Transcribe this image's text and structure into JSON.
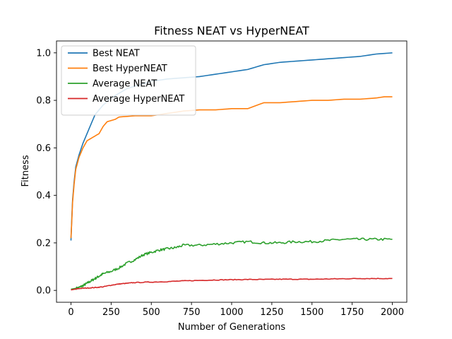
{
  "chart_data": {
    "type": "line",
    "title": "Fitness NEAT vs HyperNEAT",
    "xlabel": "Number of Generations",
    "ylabel": "Fitness",
    "xlim": [
      -90,
      2090
    ],
    "ylim": [
      -0.05,
      1.05
    ],
    "xticks": [
      0,
      250,
      500,
      750,
      1000,
      1250,
      1500,
      1750,
      2000
    ],
    "yticks": [
      0.0,
      0.2,
      0.4,
      0.6,
      0.8,
      1.0
    ],
    "grid": false,
    "legend_position": "top-left",
    "series": [
      {
        "name": "Best NEAT",
        "color": "#1f77b4",
        "points": [
          [
            0,
            0.21
          ],
          [
            5,
            0.3
          ],
          [
            10,
            0.38
          ],
          [
            20,
            0.46
          ],
          [
            30,
            0.52
          ],
          [
            50,
            0.57
          ],
          [
            75,
            0.62
          ],
          [
            100,
            0.66
          ],
          [
            125,
            0.7
          ],
          [
            150,
            0.74
          ],
          [
            175,
            0.76
          ],
          [
            200,
            0.78
          ],
          [
            250,
            0.81
          ],
          [
            300,
            0.83
          ],
          [
            350,
            0.85
          ],
          [
            400,
            0.86
          ],
          [
            450,
            0.87
          ],
          [
            500,
            0.88
          ],
          [
            600,
            0.89
          ],
          [
            700,
            0.895
          ],
          [
            800,
            0.9
          ],
          [
            900,
            0.91
          ],
          [
            1000,
            0.92
          ],
          [
            1100,
            0.93
          ],
          [
            1150,
            0.94
          ],
          [
            1200,
            0.95
          ],
          [
            1300,
            0.96
          ],
          [
            1400,
            0.965
          ],
          [
            1500,
            0.97
          ],
          [
            1600,
            0.975
          ],
          [
            1700,
            0.98
          ],
          [
            1800,
            0.985
          ],
          [
            1900,
            0.995
          ],
          [
            2000,
            1.0
          ]
        ]
      },
      {
        "name": "Best HyperNEAT",
        "color": "#ff7f0e",
        "points": [
          [
            0,
            0.22
          ],
          [
            5,
            0.29
          ],
          [
            10,
            0.37
          ],
          [
            20,
            0.45
          ],
          [
            30,
            0.51
          ],
          [
            50,
            0.56
          ],
          [
            75,
            0.6
          ],
          [
            100,
            0.63
          ],
          [
            125,
            0.64
          ],
          [
            150,
            0.65
          ],
          [
            175,
            0.66
          ],
          [
            200,
            0.69
          ],
          [
            225,
            0.71
          ],
          [
            250,
            0.715
          ],
          [
            275,
            0.72
          ],
          [
            300,
            0.73
          ],
          [
            400,
            0.735
          ],
          [
            500,
            0.735
          ],
          [
            600,
            0.745
          ],
          [
            700,
            0.755
          ],
          [
            800,
            0.76
          ],
          [
            900,
            0.76
          ],
          [
            1000,
            0.765
          ],
          [
            1100,
            0.765
          ],
          [
            1200,
            0.79
          ],
          [
            1300,
            0.79
          ],
          [
            1400,
            0.795
          ],
          [
            1500,
            0.8
          ],
          [
            1600,
            0.8
          ],
          [
            1700,
            0.805
          ],
          [
            1800,
            0.805
          ],
          [
            1900,
            0.81
          ],
          [
            1950,
            0.815
          ],
          [
            2000,
            0.815
          ]
        ]
      },
      {
        "name": "Average NEAT",
        "color": "#2ca02c",
        "points": [
          [
            0,
            0.005
          ],
          [
            25,
            0.008
          ],
          [
            50,
            0.012
          ],
          [
            75,
            0.02
          ],
          [
            100,
            0.03
          ],
          [
            125,
            0.04
          ],
          [
            150,
            0.05
          ],
          [
            175,
            0.06
          ],
          [
            200,
            0.07
          ],
          [
            250,
            0.08
          ],
          [
            300,
            0.095
          ],
          [
            350,
            0.115
          ],
          [
            400,
            0.13
          ],
          [
            450,
            0.15
          ],
          [
            500,
            0.16
          ],
          [
            550,
            0.17
          ],
          [
            600,
            0.175
          ],
          [
            650,
            0.18
          ],
          [
            700,
            0.19
          ],
          [
            800,
            0.19
          ],
          [
            900,
            0.195
          ],
          [
            1000,
            0.2
          ],
          [
            1100,
            0.205
          ],
          [
            1200,
            0.2
          ],
          [
            1300,
            0.2
          ],
          [
            1400,
            0.205
          ],
          [
            1500,
            0.205
          ],
          [
            1600,
            0.21
          ],
          [
            1700,
            0.215
          ],
          [
            1800,
            0.215
          ],
          [
            1900,
            0.215
          ],
          [
            2000,
            0.215
          ]
        ]
      },
      {
        "name": "Average HyperNEAT",
        "color": "#d62728",
        "points": [
          [
            0,
            0.002
          ],
          [
            25,
            0.005
          ],
          [
            50,
            0.008
          ],
          [
            100,
            0.01
          ],
          [
            150,
            0.012
          ],
          [
            200,
            0.015
          ],
          [
            250,
            0.022
          ],
          [
            300,
            0.027
          ],
          [
            350,
            0.03
          ],
          [
            400,
            0.033
          ],
          [
            500,
            0.035
          ],
          [
            600,
            0.037
          ],
          [
            700,
            0.04
          ],
          [
            800,
            0.042
          ],
          [
            900,
            0.044
          ],
          [
            1000,
            0.045
          ],
          [
            1100,
            0.046
          ],
          [
            1200,
            0.046
          ],
          [
            1300,
            0.047
          ],
          [
            1400,
            0.047
          ],
          [
            1500,
            0.047
          ],
          [
            1600,
            0.048
          ],
          [
            1700,
            0.049
          ],
          [
            1800,
            0.05
          ],
          [
            1900,
            0.05
          ],
          [
            2000,
            0.05
          ]
        ]
      }
    ]
  }
}
